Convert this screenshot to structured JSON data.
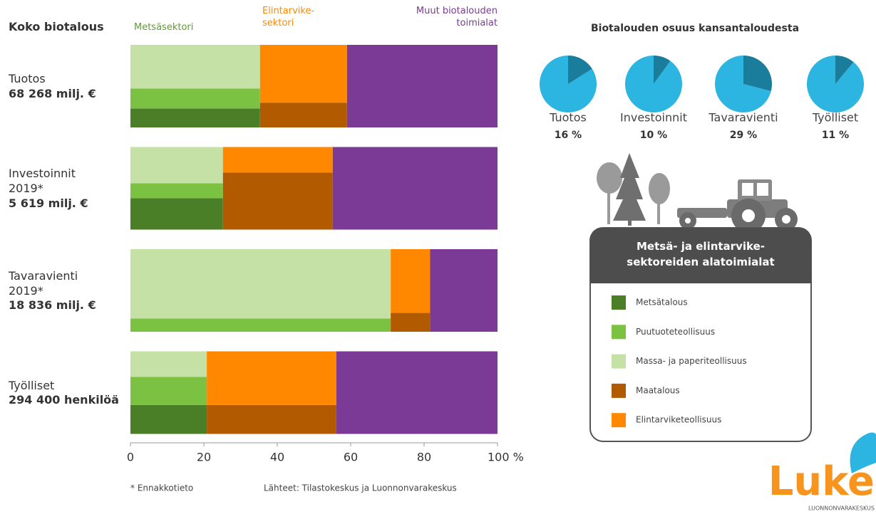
{
  "chart_data": [
    {
      "type": "bar",
      "stacked": true,
      "orientation": "horizontal",
      "title": "Koko biotalous",
      "categories": [
        "Tuotos",
        "Investoinnit\n2019*",
        "Tavaravienti\n2019*",
        "Työlliset"
      ],
      "category_totals": [
        "68 268 milj. €",
        "5 619 milj. €",
        "18 836  milj. €",
        "294 400 henkilöä"
      ],
      "series": [
        {
          "name": "Metsäsektori",
          "color": "#5c9e2e",
          "values": [
            35.3,
            25.2,
            70.9,
            20.8
          ],
          "subseries": [
            {
              "name": "Metsätalous",
              "color": "#4b7f27",
              "values": [
                23,
                38,
                0,
                35
              ]
            },
            {
              "name": "Puutuoteteollisuus",
              "color": "#7cc242",
              "values": [
                24,
                18,
                16,
                34
              ]
            },
            {
              "name": "Massa- ja paperiteollisuus",
              "color": "#c6e1a6",
              "values": [
                53,
                44,
                84,
                31
              ]
            }
          ]
        },
        {
          "name": "Elintarvike-\nsektori",
          "color": "#ff8800",
          "values": [
            23.7,
            29.9,
            10.7,
            35.3
          ],
          "subseries": [
            {
              "name": "Maatalous",
              "color": "#b25a00",
              "values": [
                30,
                69,
                23,
                35
              ]
            },
            {
              "name": "Elintarviketeollisuus",
              "color": "#ff8800",
              "values": [
                70,
                31,
                77,
                65
              ]
            }
          ]
        },
        {
          "name": "Muut biotalouden\ntoimialat",
          "color": "#7b3a96",
          "values": [
            41,
            44.9,
            18.4,
            43.9
          ]
        }
      ],
      "legend_title": "Metsä- ja elintarvike-\nsektoreiden alatoimialat",
      "xlim": [
        0,
        100
      ],
      "xticks": [
        0,
        20,
        40,
        60,
        80,
        {
          "value": 100,
          "label": "100 %"
        }
      ],
      "grid": false
    },
    {
      "type": "pie",
      "title": "Biotalouden osuus kansantaloudesta",
      "categories": [
        "Tuotos",
        "Investoinnit",
        "Tavaravienti",
        "Työlliset"
      ],
      "values": [
        16,
        10,
        29,
        11
      ],
      "value_labels": [
        "16 %",
        "10 %",
        "29 %",
        "11 %"
      ],
      "color": "#1a7d9c",
      "rest_color": "#2bb5e0"
    }
  ],
  "notes": [
    "* Ennakkotieto",
    "Lähteet: Tilastokeskus ja Luonnonvarakeskus"
  ],
  "logo": {
    "name": "Luke",
    "subtitle": "LUONNONVARAKESKUS"
  }
}
